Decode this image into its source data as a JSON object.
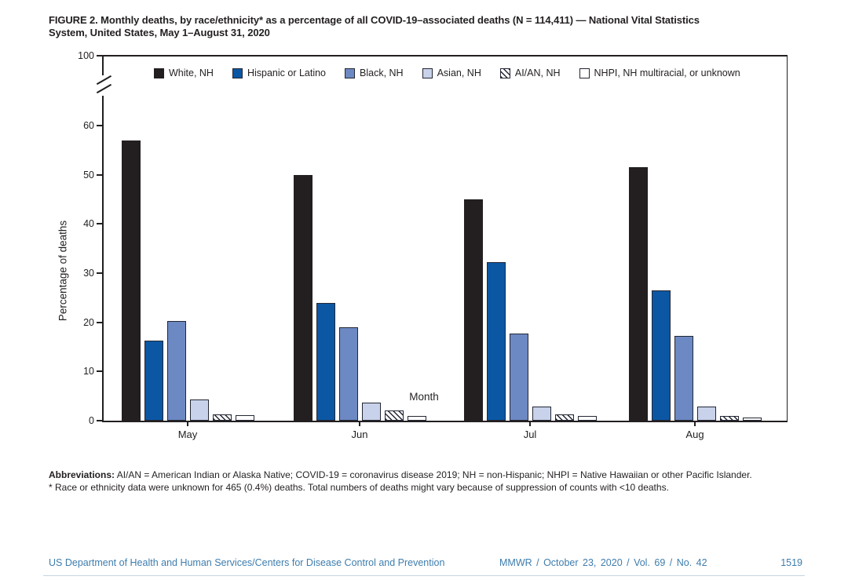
{
  "figure": {
    "title_lines": [
      "FIGURE 2. Monthly deaths, by race/ethnicity* as a percentage of all COVID-19–associated deaths (N = 114,411) — National Vital Statistics",
      "System, United States, May 1–August 31, 2020"
    ]
  },
  "chart_data": {
    "type": "bar",
    "title": "FIGURE 2. Monthly deaths, by race/ethnicity as a percentage of all COVID-19–associated deaths (N = 114,411)",
    "categories": [
      "May",
      "Jun",
      "Jul",
      "Aug"
    ],
    "series": [
      {
        "name": "White, NH",
        "color": "#231f20",
        "pattern": "solid",
        "values": [
          56.9,
          50.0,
          45.0,
          51.5
        ]
      },
      {
        "name": "Hispanic or Latino",
        "color": "#0b57a4",
        "pattern": "solid",
        "values": [
          16.3,
          23.9,
          32.2,
          26.4
        ]
      },
      {
        "name": "Black, NH",
        "color": "#6d89c3",
        "pattern": "solid",
        "values": [
          20.3,
          19.0,
          17.7,
          17.3
        ]
      },
      {
        "name": "Asian, NH",
        "color": "#c8d2ea",
        "pattern": "solid",
        "values": [
          4.3,
          3.7,
          2.8,
          2.9
        ]
      },
      {
        "name": "AI/AN, NH",
        "color": "#ffffff",
        "pattern": "hatch",
        "values": [
          1.2,
          2.1,
          1.2,
          1.0
        ]
      },
      {
        "name": "NHPI, NH multiracial, or unknown",
        "color": "#ffffff",
        "pattern": "solid",
        "values": [
          1.1,
          1.0,
          0.9,
          0.7
        ]
      }
    ],
    "xlabel": "Month",
    "ylabel": "Percentage of deaths",
    "yticks": [
      0,
      10,
      20,
      30,
      40,
      50,
      60
    ],
    "ytop_label": "100",
    "axis_break": true,
    "ylim": [
      0,
      100
    ],
    "grid": false,
    "legend_position": "top"
  },
  "footnotes": {
    "abbreviations_label": "Abbreviations:",
    "abbreviations_text": " AI/AN = American Indian or Alaska Native; COVID-19 = coronavirus disease 2019; NH = non-Hispanic; NHPI = Native Hawaiian or other Pacific Islander.",
    "asterisk_note": "* Race or ethnicity data were unknown for 465 (0.4%) deaths. Total numbers of deaths might vary because of suppression of counts with <10 deaths."
  },
  "footer": {
    "left": "US Department of Health and Human Services/Centers for Disease Control and Prevention",
    "center": "MMWR / October 23, 2020 / Vol. 69 / No. 42",
    "page": "1519"
  },
  "colors": {
    "text": "#231f20",
    "footer_text": "#3e7dad",
    "bar_border": "#232733"
  }
}
